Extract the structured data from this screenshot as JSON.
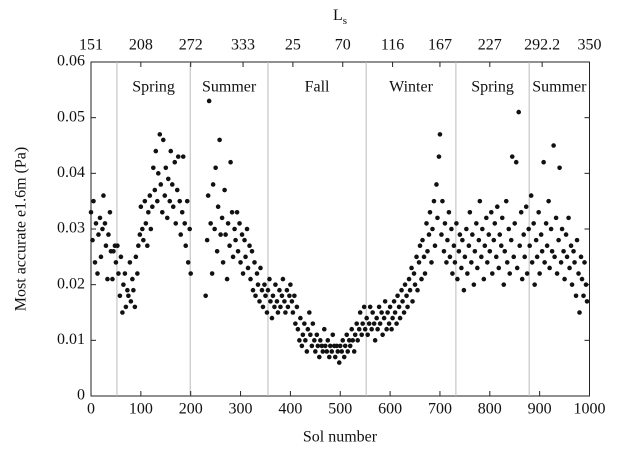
{
  "chart_data": {
    "type": "scatter",
    "xlabel": "Sol number",
    "ylabel": "Most accurate e1.6m (Pa)",
    "x2label": {
      "main": "L",
      "sub": "s"
    },
    "xlim": [
      0,
      1000
    ],
    "xticks": [
      0,
      100,
      200,
      300,
      400,
      500,
      600,
      700,
      800,
      900,
      1000
    ],
    "ylim": [
      0,
      0.06
    ],
    "yticks": [
      0,
      0.01,
      0.02,
      0.03,
      0.04,
      0.05,
      0.06
    ],
    "x2ticks": [
      {
        "value": 0,
        "label": "151"
      },
      {
        "value": 100,
        "label": "208"
      },
      {
        "value": 200,
        "label": "272"
      },
      {
        "value": 305,
        "label": "333"
      },
      {
        "value": 405,
        "label": "25"
      },
      {
        "value": 505,
        "label": "70"
      },
      {
        "value": 605,
        "label": "116"
      },
      {
        "value": 700,
        "label": "167"
      },
      {
        "value": 800,
        "label": "227"
      },
      {
        "value": 905,
        "label": "292.2"
      },
      {
        "value": 1000,
        "label": "350"
      }
    ],
    "seasons": [
      {
        "label": "Spring",
        "start": 52,
        "end": 199
      },
      {
        "label": "Summer",
        "start": 199,
        "end": 355
      },
      {
        "label": "Fall",
        "start": 355,
        "end": 552
      },
      {
        "label": "Winter",
        "start": 552,
        "end": 732
      },
      {
        "label": "Spring",
        "start": 732,
        "end": 879
      },
      {
        "label": "Summer",
        "start": 879,
        "end": 1000
      }
    ],
    "season_lines": [
      52,
      199,
      355,
      552,
      732,
      879
    ],
    "color": "#111111",
    "x": [
      0,
      3,
      5,
      8,
      10,
      13,
      15,
      18,
      20,
      23,
      25,
      28,
      30,
      33,
      35,
      38,
      40,
      43,
      45,
      48,
      50,
      53,
      55,
      58,
      60,
      63,
      65,
      68,
      70,
      73,
      75,
      78,
      80,
      83,
      85,
      88,
      90,
      93,
      95,
      98,
      100,
      103,
      105,
      108,
      110,
      113,
      115,
      118,
      120,
      123,
      125,
      128,
      130,
      133,
      135,
      138,
      140,
      143,
      145,
      148,
      150,
      153,
      155,
      158,
      160,
      163,
      165,
      168,
      170,
      173,
      175,
      178,
      180,
      183,
      185,
      188,
      190,
      193,
      195,
      198,
      200,
      230,
      233,
      235,
      237,
      240,
      243,
      245,
      248,
      250,
      253,
      255,
      258,
      260,
      263,
      265,
      268,
      270,
      273,
      275,
      278,
      280,
      283,
      285,
      288,
      290,
      293,
      295,
      298,
      300,
      303,
      305,
      308,
      310,
      313,
      315,
      318,
      320,
      323,
      325,
      328,
      330,
      333,
      335,
      338,
      340,
      343,
      345,
      348,
      350,
      353,
      355,
      358,
      360,
      363,
      365,
      368,
      370,
      373,
      375,
      378,
      380,
      383,
      385,
      388,
      390,
      393,
      395,
      398,
      400,
      403,
      405,
      408,
      410,
      413,
      415,
      418,
      420,
      423,
      425,
      428,
      430,
      433,
      435,
      438,
      440,
      443,
      445,
      448,
      450,
      453,
      455,
      458,
      460,
      463,
      465,
      468,
      470,
      473,
      475,
      478,
      480,
      483,
      485,
      488,
      490,
      493,
      495,
      498,
      500,
      503,
      505,
      508,
      510,
      513,
      515,
      518,
      520,
      523,
      525,
      528,
      530,
      533,
      535,
      538,
      540,
      543,
      545,
      548,
      550,
      553,
      555,
      558,
      560,
      563,
      565,
      568,
      570,
      573,
      575,
      578,
      580,
      583,
      585,
      588,
      590,
      593,
      595,
      598,
      600,
      603,
      605,
      608,
      610,
      613,
      615,
      618,
      620,
      623,
      625,
      628,
      630,
      633,
      635,
      638,
      640,
      643,
      645,
      648,
      650,
      653,
      655,
      658,
      660,
      663,
      665,
      668,
      670,
      673,
      675,
      678,
      680,
      683,
      685,
      688,
      690,
      693,
      695,
      698,
      700,
      703,
      705,
      708,
      710,
      713,
      715,
      718,
      720,
      723,
      725,
      728,
      730,
      733,
      735,
      738,
      740,
      743,
      745,
      748,
      750,
      753,
      755,
      758,
      760,
      763,
      765,
      768,
      770,
      773,
      775,
      778,
      780,
      783,
      785,
      788,
      790,
      793,
      795,
      798,
      800,
      803,
      805,
      808,
      810,
      813,
      815,
      818,
      820,
      823,
      825,
      828,
      830,
      833,
      835,
      838,
      840,
      843,
      845,
      848,
      850,
      853,
      855,
      858,
      860,
      863,
      865,
      868,
      870,
      873,
      875,
      878,
      880,
      883,
      885,
      888,
      890,
      893,
      895,
      898,
      900,
      903,
      905,
      908,
      910,
      913,
      915,
      918,
      920,
      923,
      925,
      928,
      930,
      933,
      935,
      938,
      940,
      943,
      945,
      948,
      950,
      953,
      955,
      958,
      960,
      963,
      965,
      968,
      970,
      973,
      975,
      978,
      980,
      983,
      985,
      988,
      990,
      993,
      995
    ],
    "values": [
      0.033,
      0.028,
      0.035,
      0.024,
      0.031,
      0.022,
      0.029,
      0.032,
      0.025,
      0.03,
      0.036,
      0.031,
      0.027,
      0.021,
      0.029,
      0.033,
      0.026,
      0.021,
      0.026,
      0.027,
      0.024,
      0.027,
      0.022,
      0.018,
      0.025,
      0.015,
      0.02,
      0.022,
      0.016,
      0.019,
      0.018,
      0.024,
      0.017,
      0.021,
      0.019,
      0.016,
      0.025,
      0.022,
      0.027,
      0.029,
      0.034,
      0.03,
      0.028,
      0.035,
      0.031,
      0.027,
      0.033,
      0.036,
      0.03,
      0.034,
      0.041,
      0.037,
      0.044,
      0.035,
      0.04,
      0.047,
      0.038,
      0.033,
      0.046,
      0.036,
      0.041,
      0.032,
      0.039,
      0.035,
      0.044,
      0.038,
      0.034,
      0.042,
      0.031,
      0.037,
      0.043,
      0.035,
      0.029,
      0.033,
      0.043,
      0.031,
      0.027,
      0.035,
      0.024,
      0.03,
      0.022,
      0.018,
      0.028,
      0.036,
      0.053,
      0.031,
      0.022,
      0.038,
      0.03,
      0.041,
      0.026,
      0.034,
      0.046,
      0.029,
      0.032,
      0.024,
      0.037,
      0.029,
      0.021,
      0.031,
      0.027,
      0.042,
      0.033,
      0.025,
      0.03,
      0.028,
      0.033,
      0.026,
      0.031,
      0.024,
      0.029,
      0.022,
      0.028,
      0.025,
      0.03,
      0.023,
      0.027,
      0.021,
      0.026,
      0.019,
      0.024,
      0.018,
      0.022,
      0.02,
      0.017,
      0.023,
      0.019,
      0.016,
      0.02,
      0.018,
      0.015,
      0.019,
      0.021,
      0.017,
      0.014,
      0.018,
      0.016,
      0.02,
      0.017,
      0.015,
      0.019,
      0.016,
      0.018,
      0.021,
      0.017,
      0.015,
      0.019,
      0.016,
      0.018,
      0.02,
      0.017,
      0.015,
      0.018,
      0.013,
      0.016,
      0.012,
      0.01,
      0.014,
      0.009,
      0.011,
      0.013,
      0.01,
      0.008,
      0.012,
      0.015,
      0.011,
      0.009,
      0.013,
      0.01,
      0.008,
      0.011,
      0.009,
      0.007,
      0.01,
      0.009,
      0.008,
      0.012,
      0.009,
      0.008,
      0.01,
      0.007,
      0.009,
      0.008,
      0.011,
      0.009,
      0.007,
      0.009,
      0.008,
      0.006,
      0.009,
      0.008,
      0.01,
      0.007,
      0.009,
      0.011,
      0.008,
      0.01,
      0.009,
      0.012,
      0.01,
      0.008,
      0.011,
      0.013,
      0.01,
      0.012,
      0.015,
      0.011,
      0.013,
      0.016,
      0.012,
      0.014,
      0.011,
      0.013,
      0.016,
      0.012,
      0.015,
      0.013,
      0.01,
      0.014,
      0.012,
      0.016,
      0.013,
      0.015,
      0.011,
      0.014,
      0.017,
      0.012,
      0.015,
      0.013,
      0.016,
      0.012,
      0.014,
      0.017,
      0.015,
      0.013,
      0.018,
      0.016,
      0.014,
      0.019,
      0.017,
      0.015,
      0.02,
      0.018,
      0.016,
      0.021,
      0.019,
      0.023,
      0.017,
      0.022,
      0.02,
      0.025,
      0.019,
      0.024,
      0.027,
      0.021,
      0.028,
      0.025,
      0.022,
      0.031,
      0.026,
      0.029,
      0.033,
      0.024,
      0.03,
      0.035,
      0.027,
      0.038,
      0.032,
      0.043,
      0.047,
      0.029,
      0.035,
      0.026,
      0.031,
      0.024,
      0.028,
      0.033,
      0.025,
      0.03,
      0.022,
      0.027,
      0.024,
      0.031,
      0.021,
      0.026,
      0.029,
      0.023,
      0.028,
      0.019,
      0.025,
      0.03,
      0.022,
      0.027,
      0.033,
      0.024,
      0.029,
      0.02,
      0.026,
      0.031,
      0.023,
      0.028,
      0.035,
      0.025,
      0.03,
      0.021,
      0.027,
      0.032,
      0.024,
      0.029,
      0.026,
      0.033,
      0.022,
      0.028,
      0.031,
      0.025,
      0.034,
      0.023,
      0.029,
      0.027,
      0.032,
      0.02,
      0.026,
      0.035,
      0.024,
      0.03,
      0.022,
      0.028,
      0.043,
      0.025,
      0.031,
      0.042,
      0.023,
      0.051,
      0.027,
      0.033,
      0.021,
      0.029,
      0.025,
      0.034,
      0.022,
      0.03,
      0.027,
      0.036,
      0.024,
      0.031,
      0.02,
      0.028,
      0.025,
      0.033,
      0.022,
      0.029,
      0.026,
      0.042,
      0.024,
      0.031,
      0.027,
      0.035,
      0.023,
      0.03,
      0.026,
      0.045,
      0.025,
      0.032,
      0.022,
      0.028,
      0.041,
      0.024,
      0.03,
      0.026,
      0.021,
      0.029,
      0.025,
      0.032,
      0.023,
      0.027,
      0.02,
      0.026,
      0.024,
      0.018,
      0.028,
      0.022,
      0.015,
      0.025,
      0.021,
      0.018,
      0.024,
      0.02,
      0.017
    ]
  }
}
